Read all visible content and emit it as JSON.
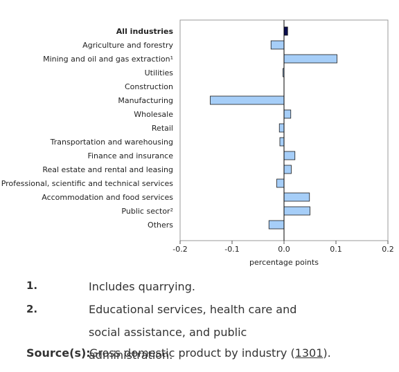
{
  "chart_data": {
    "type": "bar",
    "orientation": "horizontal",
    "categories": [
      "All industries",
      "Agriculture and forestry",
      "Mining and oil and gas extraction¹",
      "Utilities",
      "Construction",
      "Manufacturing",
      "Wholesale",
      "Retail",
      "Transportation and warehousing",
      "Finance and insurance",
      "Real estate and rental and leasing",
      "Professional, scientific and technical services",
      "Accommodation and food services",
      "Public sector²",
      "Others"
    ],
    "values": [
      0.007,
      -0.025,
      0.102,
      -0.002,
      0.0,
      -0.142,
      0.013,
      -0.009,
      -0.008,
      0.021,
      0.014,
      -0.014,
      0.049,
      0.05,
      -0.029
    ],
    "xlabel": "percentage points",
    "xlim": [
      -0.2,
      0.2
    ],
    "xticks": [
      "-0.2",
      "-0.1",
      "0.0",
      "0.1",
      "0.2"
    ],
    "xtick_values": [
      -0.2,
      -0.1,
      0.0,
      0.1,
      0.2
    ],
    "bold_category": "All industries",
    "colors": {
      "bar": "#a6cef8",
      "bar_total": "#0a0d4f",
      "bar_stroke": "#1a1a1a",
      "frame": "#999999",
      "zero_line": "#000000"
    },
    "grid": false
  },
  "notes": [
    {
      "num": "1.",
      "text": "Includes quarrying."
    },
    {
      "num": "2.",
      "text": "Educational services, health care and social assistance, and public administration."
    }
  ],
  "source": {
    "label": "Source(s):",
    "prefix": "Gross domestic product by industry (",
    "link": "1301",
    "suffix": ")."
  }
}
